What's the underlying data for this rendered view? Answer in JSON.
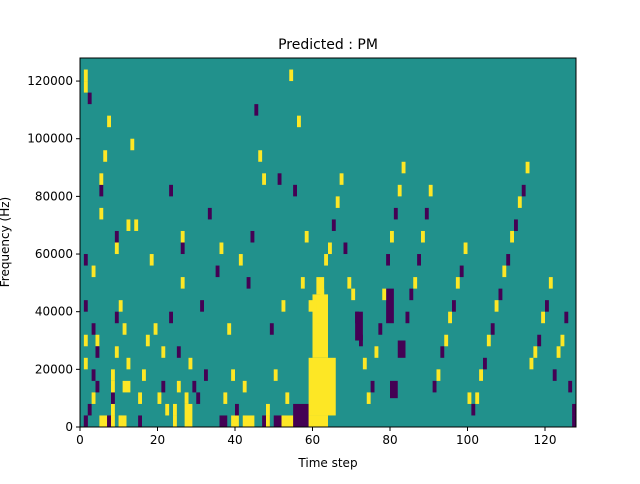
{
  "chart_data": {
    "type": "heatmap",
    "title": "Predicted : PM",
    "xlabel": "Time step",
    "ylabel": "Frequency (Hz)",
    "xlim": [
      0,
      128
    ],
    "ylim": [
      0,
      128000
    ],
    "x_ticks": [
      {
        "value": 0,
        "label": "0"
      },
      {
        "value": 20,
        "label": "20"
      },
      {
        "value": 40,
        "label": "40"
      },
      {
        "value": 60,
        "label": "60"
      },
      {
        "value": 80,
        "label": "80"
      },
      {
        "value": 100,
        "label": "100"
      },
      {
        "value": 120,
        "label": "120"
      }
    ],
    "y_ticks": [
      {
        "value": 0,
        "label": "0"
      },
      {
        "value": 20000,
        "label": "20000"
      },
      {
        "value": 40000,
        "label": "40000"
      },
      {
        "value": 60000,
        "label": "60000"
      },
      {
        "value": 80000,
        "label": "80000"
      },
      {
        "value": 100000,
        "label": "100000"
      },
      {
        "value": 120000,
        "label": "120000"
      }
    ],
    "grid": false,
    "colormap": "viridis",
    "value_levels": [
      -1,
      0,
      1
    ],
    "background_value": 0,
    "colors": {
      "neg": "#440154",
      "mid": "#21918c",
      "pos": "#fde725"
    },
    "cells": [
      [
        1,
        2000,
        -1
      ],
      [
        2,
        6000,
        -1
      ],
      [
        3,
        10000,
        1
      ],
      [
        4,
        14000,
        -1
      ],
      [
        3,
        18000,
        -1
      ],
      [
        1,
        22000,
        1
      ],
      [
        1,
        28000,
        1
      ],
      [
        3,
        34000,
        -1
      ],
      [
        1,
        42000,
        -1
      ],
      [
        3,
        54000,
        1
      ],
      [
        1,
        58000,
        -1
      ],
      [
        2,
        114000,
        -1
      ],
      [
        1,
        118000,
        1
      ],
      [
        1,
        122000,
        1
      ],
      [
        4,
        30000,
        1
      ],
      [
        4,
        26000,
        -1
      ],
      [
        5,
        82000,
        -1
      ],
      [
        5,
        86000,
        1
      ],
      [
        5,
        74000,
        1
      ],
      [
        6,
        92000,
        1
      ],
      [
        7,
        106000,
        1
      ],
      [
        7,
        1000,
        -1
      ],
      [
        7,
        3000,
        -1
      ],
      [
        8,
        2000,
        1
      ],
      [
        8,
        4000,
        1
      ],
      [
        8,
        10000,
        -1
      ],
      [
        8,
        14000,
        1
      ],
      [
        8,
        18000,
        1
      ],
      [
        9,
        24000,
        1
      ],
      [
        9,
        38000,
        -1
      ],
      [
        9,
        62000,
        1
      ],
      [
        9,
        66000,
        -1
      ],
      [
        10,
        1000,
        1
      ],
      [
        10,
        3000,
        1
      ],
      [
        10,
        40000,
        1
      ],
      [
        11,
        1000,
        1
      ],
      [
        11,
        3000,
        1
      ],
      [
        11,
        12000,
        1
      ],
      [
        12,
        14000,
        1
      ],
      [
        12,
        22000,
        1
      ],
      [
        11,
        32000,
        1
      ],
      [
        12,
        70000,
        1
      ],
      [
        13,
        98000,
        1
      ],
      [
        14,
        68000,
        1
      ],
      [
        15,
        2000,
        -1
      ],
      [
        15,
        10000,
        1
      ],
      [
        16,
        18000,
        1
      ],
      [
        17,
        30000,
        1
      ],
      [
        18,
        58000,
        1
      ],
      [
        19,
        34000,
        1
      ],
      [
        20,
        10000,
        1
      ],
      [
        21,
        14000,
        -1
      ],
      [
        21,
        24000,
        1
      ],
      [
        22,
        6000,
        1
      ],
      [
        23,
        38000,
        -1
      ],
      [
        23,
        82000,
        -1
      ],
      [
        24,
        2000,
        1
      ],
      [
        24,
        6000,
        1
      ],
      [
        25,
        14000,
        1
      ],
      [
        25,
        26000,
        -1
      ],
      [
        26,
        48000,
        1
      ],
      [
        26,
        62000,
        -1
      ],
      [
        26,
        66000,
        1
      ],
      [
        27,
        10000,
        1
      ],
      [
        28,
        20000,
        1
      ],
      [
        29,
        14000,
        -1
      ],
      [
        30,
        8000,
        -1
      ],
      [
        31,
        40000,
        -1
      ],
      [
        32,
        18000,
        -1
      ],
      [
        33,
        74000,
        -1
      ],
      [
        35,
        54000,
        -1
      ],
      [
        36,
        62000,
        1
      ],
      [
        37,
        8000,
        1
      ],
      [
        38,
        34000,
        1
      ],
      [
        39,
        16000,
        1
      ],
      [
        40,
        2000,
        1
      ],
      [
        40,
        6000,
        -1
      ],
      [
        41,
        56000,
        1
      ],
      [
        42,
        12000,
        1
      ],
      [
        43,
        48000,
        -1
      ],
      [
        44,
        66000,
        -1
      ],
      [
        45,
        110000,
        -1
      ],
      [
        46,
        94000,
        1
      ],
      [
        47,
        84000,
        1
      ],
      [
        48,
        2000,
        1
      ],
      [
        48,
        6000,
        1
      ],
      [
        49,
        34000,
        -1
      ],
      [
        50,
        18000,
        1
      ],
      [
        51,
        84000,
        -1
      ],
      [
        52,
        40000,
        1
      ],
      [
        53,
        8000,
        1
      ],
      [
        54,
        120000,
        1
      ],
      [
        55,
        80000,
        -1
      ],
      [
        56,
        104000,
        1
      ],
      [
        57,
        50000,
        1
      ],
      [
        58,
        66000,
        1
      ],
      [
        59,
        42000,
        1
      ],
      [
        60,
        30000,
        1
      ],
      [
        61,
        38000,
        1
      ],
      [
        61,
        42000,
        1
      ],
      [
        62,
        46000,
        1
      ],
      [
        63,
        56000,
        1
      ],
      [
        64,
        62000,
        1
      ],
      [
        65,
        70000,
        -1
      ],
      [
        66,
        76000,
        1
      ],
      [
        67,
        84000,
        1
      ],
      [
        68,
        62000,
        -1
      ],
      [
        69,
        50000,
        1
      ],
      [
        70,
        44000,
        1
      ],
      [
        71,
        36000,
        -1
      ],
      [
        72,
        28000,
        -1
      ],
      [
        73,
        20000,
        1
      ],
      [
        74,
        8000,
        1
      ],
      [
        75,
        14000,
        -1
      ],
      [
        76,
        24000,
        1
      ],
      [
        77,
        34000,
        -1
      ],
      [
        78,
        46000,
        1
      ],
      [
        79,
        58000,
        -1
      ],
      [
        80,
        66000,
        1
      ],
      [
        81,
        74000,
        -1
      ],
      [
        82,
        82000,
        1
      ],
      [
        83,
        90000,
        1
      ],
      [
        84,
        38000,
        -1
      ],
      [
        85,
        44000,
        -1
      ],
      [
        86,
        50000,
        1
      ],
      [
        87,
        58000,
        -1
      ],
      [
        88,
        66000,
        1
      ],
      [
        89,
        74000,
        -1
      ],
      [
        90,
        82000,
        1
      ],
      [
        91,
        14000,
        -1
      ],
      [
        92,
        18000,
        1
      ],
      [
        93,
        24000,
        -1
      ],
      [
        94,
        30000,
        1
      ],
      [
        95,
        36000,
        1
      ],
      [
        96,
        42000,
        -1
      ],
      [
        97,
        48000,
        1
      ],
      [
        98,
        54000,
        -1
      ],
      [
        99,
        60000,
        1
      ],
      [
        100,
        10000,
        1
      ],
      [
        101,
        4000,
        -1
      ],
      [
        102,
        8000,
        1
      ],
      [
        103,
        16000,
        1
      ],
      [
        104,
        22000,
        -1
      ],
      [
        105,
        28000,
        1
      ],
      [
        106,
        34000,
        -1
      ],
      [
        107,
        40000,
        1
      ],
      [
        108,
        46000,
        -1
      ],
      [
        109,
        52000,
        1
      ],
      [
        110,
        58000,
        -1
      ],
      [
        111,
        64000,
        1
      ],
      [
        112,
        70000,
        -1
      ],
      [
        113,
        76000,
        1
      ],
      [
        114,
        82000,
        -1
      ],
      [
        115,
        88000,
        1
      ],
      [
        116,
        20000,
        1
      ],
      [
        117,
        24000,
        1
      ],
      [
        118,
        30000,
        -1
      ],
      [
        119,
        36000,
        1
      ],
      [
        120,
        42000,
        -1
      ],
      [
        121,
        48000,
        1
      ],
      [
        122,
        18000,
        -1
      ],
      [
        123,
        24000,
        1
      ],
      [
        124,
        30000,
        1
      ],
      [
        125,
        36000,
        -1
      ],
      [
        126,
        12000,
        -1
      ],
      [
        127,
        4000,
        -1
      ]
    ],
    "regions": [
      {
        "x": [
          1,
          2
        ],
        "y": [
          0,
          4000
        ],
        "value": -1
      },
      {
        "x": [
          5,
          8
        ],
        "y": [
          0,
          4000
        ],
        "value": 1
      },
      {
        "x": [
          10,
          11
        ],
        "y": [
          0,
          4000
        ],
        "value": 1
      },
      {
        "x": [
          27,
          29
        ],
        "y": [
          0,
          8000
        ],
        "value": 1
      },
      {
        "x": [
          36,
          38
        ],
        "y": [
          0,
          4000
        ],
        "value": -1
      },
      {
        "x": [
          39,
          40
        ],
        "y": [
          0,
          4000
        ],
        "value": 1
      },
      {
        "x": [
          42,
          45
        ],
        "y": [
          0,
          4000
        ],
        "value": 1
      },
      {
        "x": [
          47,
          49
        ],
        "y": [
          0,
          4000
        ],
        "value": -1
      },
      {
        "x": [
          50,
          52
        ],
        "y": [
          0,
          4000
        ],
        "value": -1
      },
      {
        "x": [
          52,
          56
        ],
        "y": [
          0,
          4000
        ],
        "value": 1
      },
      {
        "x": [
          55,
          59
        ],
        "y": [
          0,
          8000
        ],
        "value": -1
      },
      {
        "x": [
          59,
          64
        ],
        "y": [
          0,
          4000
        ],
        "value": 1
      },
      {
        "x": [
          59,
          66
        ],
        "y": [
          4000,
          24000
        ],
        "value": 1
      },
      {
        "x": [
          60,
          64
        ],
        "y": [
          24000,
          46000
        ],
        "value": 1
      },
      {
        "x": [
          61,
          63
        ],
        "y": [
          46000,
          52000
        ],
        "value": 1
      },
      {
        "x": [
          71,
          73
        ],
        "y": [
          30000,
          40000
        ],
        "value": -1
      },
      {
        "x": [
          79,
          81
        ],
        "y": [
          36000,
          48000
        ],
        "value": -1
      },
      {
        "x": [
          80,
          82
        ],
        "y": [
          10000,
          16000
        ],
        "value": -1
      },
      {
        "x": [
          82,
          84
        ],
        "y": [
          24000,
          30000
        ],
        "value": -1
      },
      {
        "x": [
          127,
          128
        ],
        "y": [
          0,
          4000
        ],
        "value": -1
      }
    ]
  }
}
